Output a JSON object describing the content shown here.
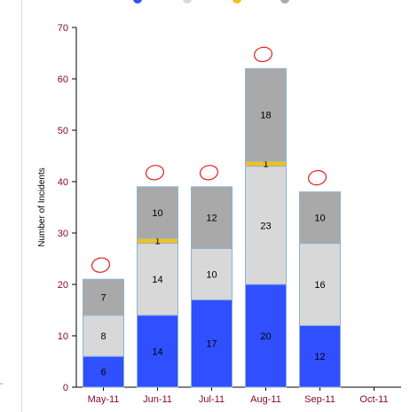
{
  "colors": {
    "series": [
      "#3050ff",
      "#d8d8d8",
      "#f0c020",
      "#a9a9a9"
    ],
    "bar_outline": "#8ab4d6",
    "tick_text": "#8a0a2e",
    "axis": "#000000",
    "annotation": "#e02020"
  },
  "chart_data": {
    "type": "bar",
    "stacked": true,
    "categories": [
      "May-11",
      "Jun-11",
      "Jul-11",
      "Aug-11",
      "Sep-11",
      "Oct-11"
    ],
    "series": [
      {
        "values": [
          6,
          14,
          17,
          20,
          12,
          0
        ]
      },
      {
        "values": [
          8,
          14,
          10,
          23,
          16,
          0
        ]
      },
      {
        "values": [
          0,
          1,
          0,
          1,
          0,
          0
        ]
      },
      {
        "values": [
          7,
          10,
          12,
          18,
          10,
          0
        ]
      }
    ],
    "ylabel": "Number of Incidents",
    "ylim": [
      0,
      70
    ],
    "yticks": [
      0,
      10,
      20,
      30,
      40,
      50,
      60,
      70
    ],
    "legend_position": "top",
    "grid": false,
    "annotations": "hand-drawn red circles above the May-11 to Sep-11 bars"
  }
}
